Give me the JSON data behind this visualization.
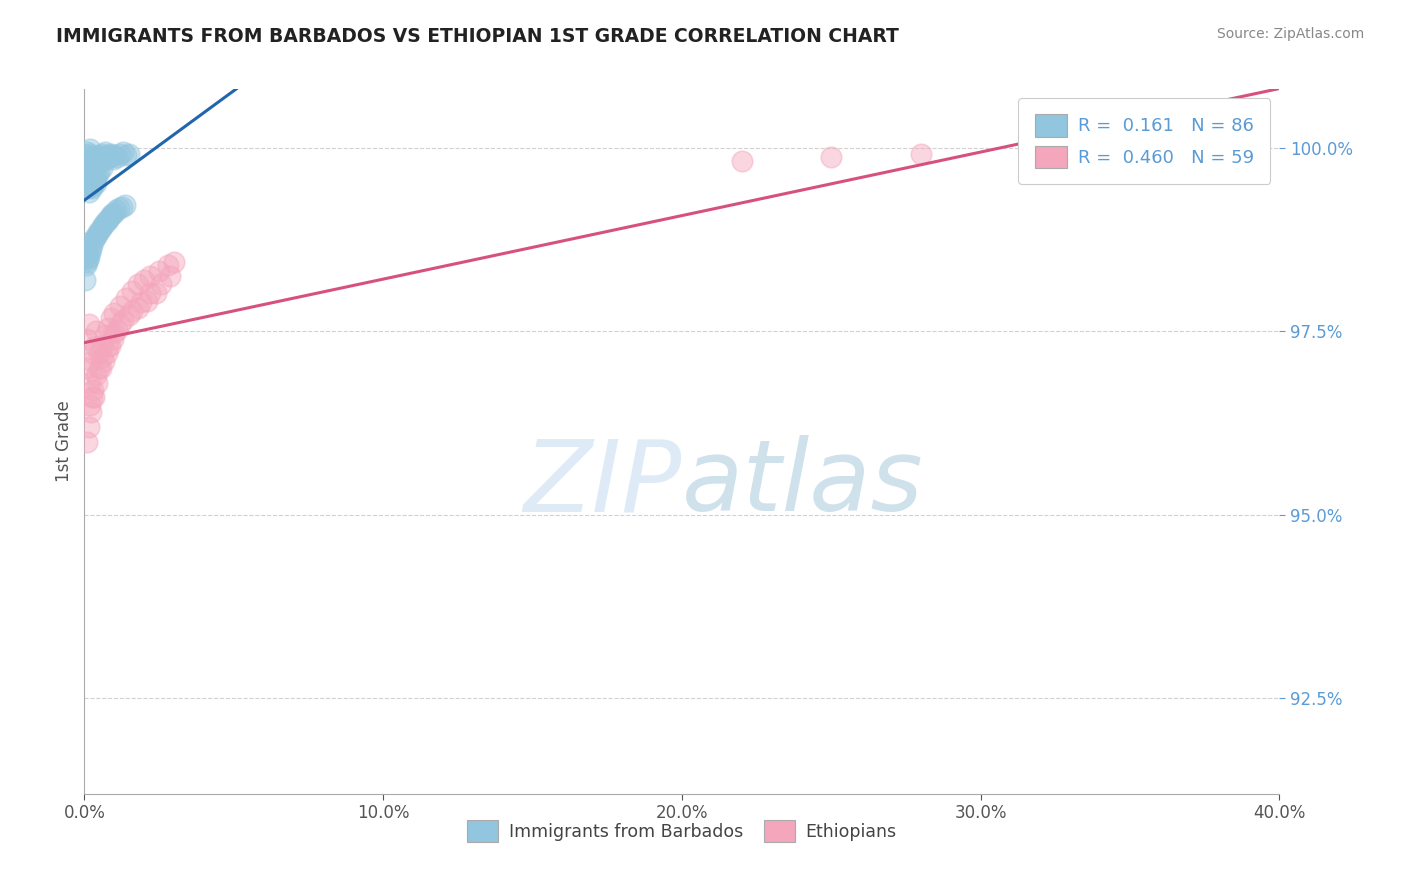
{
  "title": "IMMIGRANTS FROM BARBADOS VS ETHIOPIAN 1ST GRADE CORRELATION CHART",
  "source": "Source: ZipAtlas.com",
  "ylabel": "1st Grade",
  "ytick_labels": [
    "92.5%",
    "95.0%",
    "97.5%",
    "100.0%"
  ],
  "ytick_values": [
    0.925,
    0.95,
    0.975,
    1.0
  ],
  "legend_r_blue": "R =  0.161",
  "legend_n_blue": "N = 86",
  "legend_r_pink": "R =  0.460",
  "legend_n_pink": "N = 59",
  "blue_color": "#92c5de",
  "pink_color": "#f4a6bc",
  "blue_line_color": "#2166ac",
  "pink_line_color": "#d6517d",
  "xmin": 0.0,
  "xmax": 0.4,
  "ymin": 0.912,
  "ymax": 1.008,
  "watermark_zip": "ZIP",
  "watermark_atlas": "atlas",
  "background_color": "#ffffff",
  "blue_scatter_x": [
    0.0005,
    0.0005,
    0.0008,
    0.001,
    0.001,
    0.0012,
    0.0012,
    0.0015,
    0.0015,
    0.0015,
    0.0018,
    0.0018,
    0.002,
    0.002,
    0.002,
    0.0022,
    0.0022,
    0.0022,
    0.0025,
    0.0025,
    0.0025,
    0.0028,
    0.0028,
    0.003,
    0.003,
    0.003,
    0.0032,
    0.0032,
    0.0035,
    0.0035,
    0.0038,
    0.0038,
    0.004,
    0.004,
    0.0042,
    0.0045,
    0.0045,
    0.0048,
    0.005,
    0.005,
    0.0055,
    0.006,
    0.006,
    0.0065,
    0.007,
    0.0075,
    0.008,
    0.0085,
    0.009,
    0.0095,
    0.01,
    0.011,
    0.012,
    0.013,
    0.014,
    0.015,
    0.0003,
    0.0003,
    0.0004,
    0.0006,
    0.0007,
    0.0009,
    0.0011,
    0.0013,
    0.0016,
    0.0019,
    0.0023,
    0.0026,
    0.0033,
    0.0037,
    0.0043,
    0.0047,
    0.0052,
    0.0058,
    0.0063,
    0.0068,
    0.0073,
    0.0078,
    0.0083,
    0.0088,
    0.0093,
    0.0098,
    0.0105,
    0.0115,
    0.0125,
    0.0135
  ],
  "blue_scatter_y": [
    0.999,
    0.996,
    0.9995,
    0.9985,
    0.9955,
    0.9975,
    0.9945,
    0.9992,
    0.9968,
    0.994,
    0.9988,
    0.9962,
    0.9998,
    0.9978,
    0.995,
    0.9985,
    0.9972,
    0.9948,
    0.998,
    0.9965,
    0.9945,
    0.9975,
    0.9955,
    0.9988,
    0.997,
    0.995,
    0.9982,
    0.996,
    0.9978,
    0.9958,
    0.9985,
    0.9962,
    0.9975,
    0.9952,
    0.998,
    0.9988,
    0.9965,
    0.9982,
    0.999,
    0.9968,
    0.9985,
    0.9992,
    0.9972,
    0.9988,
    0.9995,
    0.9985,
    0.999,
    0.9988,
    0.9992,
    0.9985,
    0.999,
    0.9988,
    0.9992,
    0.9995,
    0.999,
    0.9992,
    0.985,
    0.982,
    0.987,
    0.984,
    0.986,
    0.9845,
    0.9855,
    0.9848,
    0.9852,
    0.9858,
    0.9862,
    0.9868,
    0.9875,
    0.9878,
    0.9882,
    0.9885,
    0.9888,
    0.9892,
    0.9895,
    0.9898,
    0.99,
    0.9902,
    0.9905,
    0.9908,
    0.991,
    0.9912,
    0.9915,
    0.9918,
    0.992,
    0.9922
  ],
  "pink_scatter_x": [
    0.0005,
    0.001,
    0.0015,
    0.002,
    0.0025,
    0.003,
    0.0035,
    0.004,
    0.005,
    0.006,
    0.007,
    0.008,
    0.009,
    0.01,
    0.012,
    0.014,
    0.016,
    0.018,
    0.02,
    0.022,
    0.025,
    0.028,
    0.03,
    0.002,
    0.0025,
    0.003,
    0.004,
    0.005,
    0.006,
    0.008,
    0.01,
    0.012,
    0.015,
    0.018,
    0.021,
    0.024,
    0.001,
    0.0015,
    0.0022,
    0.0032,
    0.0042,
    0.0055,
    0.0065,
    0.0075,
    0.0085,
    0.0095,
    0.011,
    0.013,
    0.016,
    0.019,
    0.022,
    0.0255,
    0.0285,
    0.35,
    0.38,
    0.28,
    0.32,
    0.25,
    0.22
  ],
  "pink_scatter_y": [
    0.97,
    0.974,
    0.976,
    0.968,
    0.971,
    0.972,
    0.973,
    0.975,
    0.972,
    0.973,
    0.9745,
    0.9755,
    0.9768,
    0.9775,
    0.9785,
    0.9795,
    0.9805,
    0.9815,
    0.982,
    0.9825,
    0.9832,
    0.984,
    0.9845,
    0.965,
    0.966,
    0.967,
    0.969,
    0.97,
    0.9715,
    0.973,
    0.9748,
    0.976,
    0.9772,
    0.9782,
    0.9792,
    0.9802,
    0.96,
    0.962,
    0.964,
    0.966,
    0.968,
    0.97,
    0.971,
    0.972,
    0.973,
    0.974,
    0.9752,
    0.9765,
    0.9778,
    0.979,
    0.9802,
    0.9815,
    0.9825,
    0.9998,
    0.9996,
    0.9992,
    0.9994,
    0.9988,
    0.9982
  ]
}
